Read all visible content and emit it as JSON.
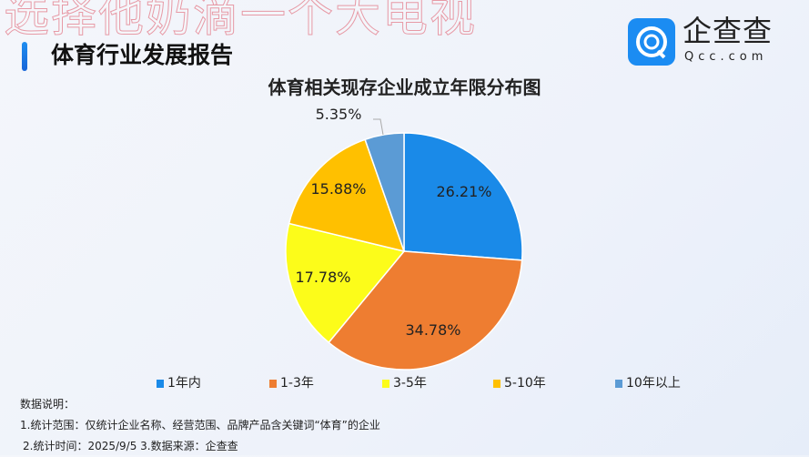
{
  "watermark": "选择他奶滴一个大电视",
  "header": {
    "report_title": "体育行业发展报告",
    "logo_text": "企查查",
    "logo_sub": "Qcc.com"
  },
  "chart_data": {
    "type": "pie",
    "title": "体育相关现存企业成立年限分布图",
    "start": "12 o'clock, clockwise",
    "categories": [
      "1年内",
      "1-3年",
      "3-5年",
      "5-10年",
      "10年以上"
    ],
    "values": [
      26.21,
      34.78,
      17.78,
      15.88,
      5.35
    ],
    "labels": [
      "26.21%",
      "34.78%",
      "17.78%",
      "15.88%",
      "5.35%"
    ],
    "colors": [
      "#1a8ae8",
      "#ee7d31",
      "#fcfc1a",
      "#ffc000",
      "#5b9bd5"
    ],
    "legend": "bottom"
  },
  "notes": {
    "heading": "数据说明：",
    "line1": "1.统计范围：仅统计企业名称、经营范围、品牌产品含关键词“体育”的企业",
    "line2": "2.统计时间：2025/9/5 3.数据来源：企查查"
  }
}
